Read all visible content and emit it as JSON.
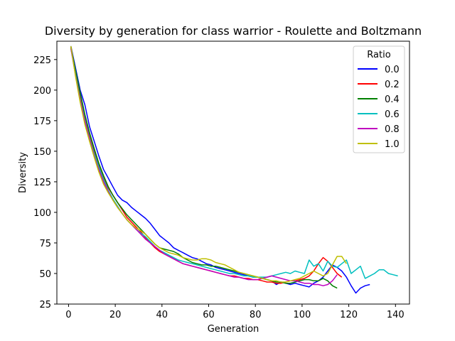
{
  "chart_data": {
    "type": "line",
    "title": "Diversity by generation for class warrior - Roulette and Boltzmann",
    "xlabel": "Generation",
    "ylabel": "Diversity",
    "xlim": [
      -5,
      146
    ],
    "ylim": [
      25,
      240
    ],
    "xticks": [
      0,
      20,
      40,
      60,
      80,
      100,
      120,
      140
    ],
    "yticks": [
      25,
      50,
      75,
      100,
      125,
      150,
      175,
      200,
      225
    ],
    "grid": false,
    "legend": {
      "title": "Ratio",
      "placement": "top-right"
    },
    "series": [
      {
        "name": "0.0",
        "color": "#0000ff",
        "x": [
          1,
          3,
          5,
          7,
          9,
          11,
          13,
          15,
          17,
          19,
          21,
          23,
          25,
          27,
          29,
          31,
          33,
          35,
          37,
          39,
          41,
          43,
          45,
          47,
          49,
          51,
          53,
          55,
          57,
          59,
          61,
          63,
          65,
          67,
          69,
          71,
          73,
          75,
          77,
          79,
          81,
          83,
          85,
          87,
          89,
          91,
          93,
          95,
          97,
          99,
          101,
          103,
          105,
          107,
          109,
          111,
          113,
          115,
          117,
          119,
          121,
          123,
          125,
          127,
          129
        ],
        "y": [
          236,
          218,
          200,
          188,
          170,
          158,
          146,
          135,
          128,
          121,
          114,
          110,
          108,
          104,
          101,
          98,
          95,
          91,
          86,
          81,
          78,
          75,
          71,
          69,
          67,
          65,
          63,
          62,
          60,
          58,
          57,
          55,
          54,
          53,
          52,
          51,
          50,
          49,
          48,
          47,
          47,
          46,
          45,
          44,
          41,
          43,
          42,
          41,
          42,
          41,
          40,
          39,
          42,
          44,
          47,
          52,
          57,
          55,
          52,
          47,
          40,
          34,
          38,
          40,
          41
        ]
      },
      {
        "name": "0.2",
        "color": "#ff0000",
        "x": [
          1,
          3,
          5,
          7,
          9,
          11,
          13,
          15,
          17,
          19,
          21,
          23,
          25,
          27,
          29,
          31,
          33,
          35,
          37,
          39,
          41,
          43,
          45,
          47,
          49,
          51,
          53,
          55,
          57,
          59,
          61,
          63,
          65,
          67,
          69,
          71,
          73,
          75,
          77,
          79,
          81,
          83,
          85,
          87,
          89,
          91,
          93,
          95,
          97,
          99,
          101,
          103,
          105,
          107,
          109,
          111,
          113,
          115,
          117
        ],
        "y": [
          235,
          214,
          195,
          178,
          163,
          150,
          138,
          128,
          120,
          114,
          108,
          102,
          96,
          92,
          88,
          84,
          79,
          75,
          71,
          68,
          66,
          64,
          62,
          60,
          58,
          57,
          56,
          55,
          54,
          53,
          52,
          51,
          50,
          49,
          48,
          48,
          47,
          46,
          46,
          45,
          45,
          44,
          43,
          43,
          42,
          42,
          43,
          44,
          44,
          45,
          46,
          48,
          52,
          58,
          63,
          60,
          55,
          50,
          47
        ]
      },
      {
        "name": "0.4",
        "color": "#008000",
        "x": [
          1,
          3,
          5,
          7,
          9,
          11,
          13,
          15,
          17,
          19,
          21,
          23,
          25,
          27,
          29,
          31,
          33,
          35,
          37,
          39,
          41,
          43,
          45,
          47,
          49,
          51,
          53,
          55,
          57,
          59,
          61,
          63,
          65,
          67,
          69,
          71,
          73,
          75,
          77,
          79,
          81,
          83,
          85,
          87,
          89,
          91,
          93,
          95,
          97,
          99,
          101,
          103,
          105,
          107,
          109,
          111,
          113,
          115
        ],
        "y": [
          235,
          216,
          198,
          180,
          165,
          152,
          140,
          130,
          121,
          114,
          108,
          103,
          98,
          94,
          90,
          86,
          82,
          78,
          74,
          71,
          70,
          69,
          68,
          66,
          63,
          61,
          59,
          58,
          57,
          57,
          56,
          56,
          55,
          54,
          53,
          52,
          51,
          50,
          49,
          48,
          47,
          46,
          45,
          44,
          43,
          43,
          42,
          42,
          43,
          44,
          45,
          45,
          44,
          44,
          46,
          44,
          40,
          38
        ]
      },
      {
        "name": "0.6",
        "color": "#00bfbf",
        "x": [
          1,
          3,
          5,
          7,
          9,
          11,
          13,
          15,
          17,
          19,
          21,
          23,
          25,
          27,
          29,
          31,
          33,
          35,
          37,
          39,
          41,
          43,
          45,
          47,
          49,
          51,
          53,
          55,
          57,
          59,
          61,
          63,
          65,
          67,
          69,
          71,
          73,
          75,
          77,
          79,
          81,
          83,
          85,
          87,
          89,
          91,
          93,
          95,
          97,
          99,
          101,
          103,
          105,
          107,
          109,
          111,
          113,
          115,
          117,
          119,
          121,
          123,
          125,
          127,
          129,
          131,
          133,
          135,
          137,
          139,
          141
        ],
        "y": [
          234,
          213,
          193,
          176,
          161,
          148,
          137,
          127,
          118,
          111,
          105,
          99,
          94,
          90,
          86,
          83,
          80,
          76,
          72,
          69,
          67,
          65,
          63,
          61,
          60,
          59,
          58,
          57,
          56,
          55,
          54,
          53,
          52,
          51,
          50,
          50,
          49,
          48,
          48,
          47,
          47,
          47,
          47,
          48,
          49,
          50,
          51,
          50,
          52,
          51,
          50,
          61,
          56,
          58,
          52,
          60,
          56,
          55,
          58,
          61,
          50,
          53,
          56,
          46,
          48,
          50,
          53,
          53,
          50,
          49,
          48
        ]
      },
      {
        "name": "0.8",
        "color": "#bf00bf",
        "x": [
          1,
          3,
          5,
          7,
          9,
          11,
          13,
          15,
          17,
          19,
          21,
          23,
          25,
          27,
          29,
          31,
          33,
          35,
          37,
          39,
          41,
          43,
          45,
          47,
          49,
          51,
          53,
          55,
          57,
          59,
          61,
          63,
          65,
          67,
          69,
          71,
          73,
          75,
          77,
          79,
          81,
          83,
          85,
          87,
          89,
          91,
          93,
          95,
          97,
          99,
          101,
          103,
          105,
          107,
          109,
          111,
          113,
          115
        ],
        "y": [
          234,
          212,
          192,
          175,
          160,
          146,
          135,
          125,
          117,
          110,
          104,
          99,
          94,
          90,
          86,
          82,
          78,
          75,
          72,
          69,
          66,
          64,
          62,
          60,
          58,
          57,
          56,
          55,
          54,
          53,
          52,
          51,
          50,
          49,
          48,
          47,
          47,
          46,
          45,
          45,
          45,
          46,
          47,
          48,
          47,
          46,
          45,
          44,
          44,
          43,
          42,
          42,
          41,
          41,
          40,
          41,
          44,
          49
        ]
      },
      {
        "name": "1.0",
        "color": "#bfbf00",
        "x": [
          1,
          3,
          5,
          7,
          9,
          11,
          13,
          15,
          17,
          19,
          21,
          23,
          25,
          27,
          29,
          31,
          33,
          35,
          37,
          39,
          41,
          43,
          45,
          47,
          49,
          51,
          53,
          55,
          57,
          59,
          61,
          63,
          65,
          67,
          69,
          71,
          73,
          75,
          77,
          79,
          81,
          83,
          85,
          87,
          89,
          91,
          93,
          95,
          97,
          99,
          101,
          103,
          105,
          107,
          109,
          111,
          113,
          115,
          117,
          119
        ],
        "y": [
          236,
          211,
          190,
          172,
          158,
          145,
          133,
          123,
          116,
          110,
          104,
          99,
          94,
          90,
          87,
          85,
          82,
          78,
          74,
          71,
          69,
          67,
          66,
          65,
          63,
          62,
          61,
          61,
          62,
          62,
          61,
          59,
          58,
          57,
          55,
          53,
          51,
          50,
          49,
          48,
          47,
          46,
          45,
          44,
          44,
          43,
          43,
          44,
          45,
          46,
          48,
          50,
          52,
          50,
          48,
          50,
          57,
          64,
          64,
          58
        ]
      }
    ]
  }
}
